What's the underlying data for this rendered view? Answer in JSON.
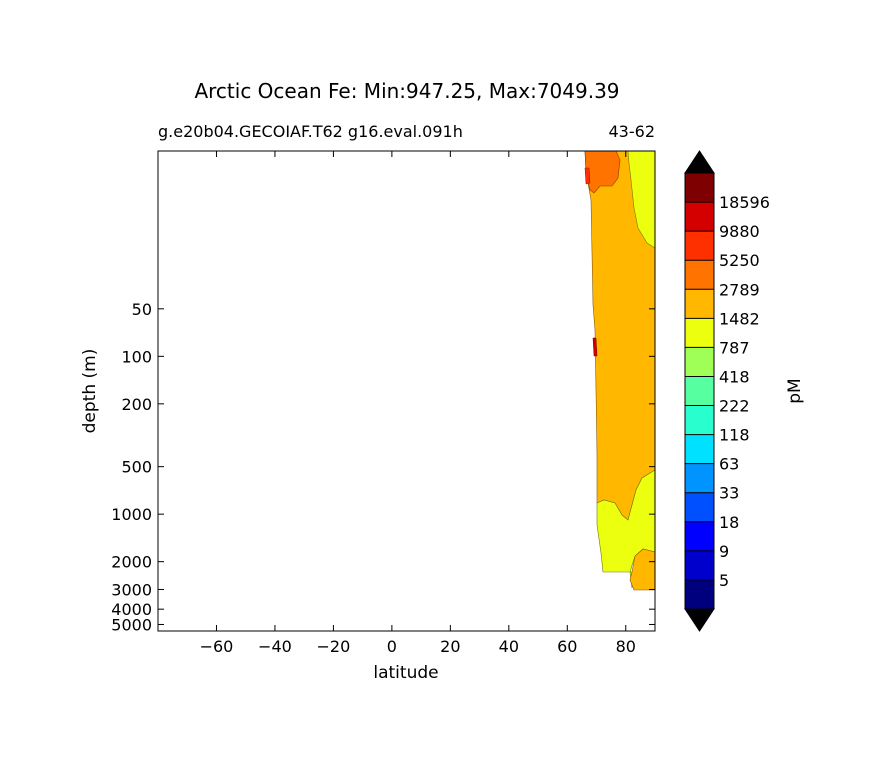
{
  "chart_data": {
    "type": "contour",
    "title": "Arctic Ocean Fe: Min:947.25, Max:7049.39",
    "subtitle_left": "g.e20b04.GECOIAF.T62 g16.eval.091h",
    "subtitle_right": "43-62",
    "xlabel": "latitude",
    "ylabel": "depth (m)",
    "xlim": [
      -80,
      90
    ],
    "x_ticks": [
      -60,
      -40,
      -20,
      0,
      20,
      40,
      60,
      80
    ],
    "x_tick_labels": [
      "−60",
      "−40",
      "−20",
      "0",
      "20",
      "40",
      "60",
      "80"
    ],
    "ylim_depth": [
      5,
      5500
    ],
    "y_ticks": [
      50,
      100,
      200,
      500,
      1000,
      2000,
      3000,
      4000,
      5000
    ],
    "y_tick_labels": [
      "50",
      "100",
      "200",
      "500",
      "1000",
      "2000",
      "3000",
      "4000",
      "5000"
    ],
    "colorbar": {
      "unit": "pM",
      "levels": [
        5,
        9,
        18,
        33,
        63,
        118,
        222,
        418,
        787,
        1482,
        2789,
        5250,
        9880,
        18596
      ],
      "level_labels": [
        "5",
        "9",
        "18",
        "33",
        "63",
        "118",
        "222",
        "418",
        "787",
        "1482",
        "2789",
        "5250",
        "9880",
        "18596"
      ],
      "colors": [
        "#00007f",
        "#0000cd",
        "#0000ff",
        "#0050ff",
        "#0094ff",
        "#00e0ff",
        "#29ffce",
        "#56ffa0",
        "#a0ff56",
        "#ecff0f",
        "#ffb700",
        "#ff7300",
        "#ff3000",
        "#d40000",
        "#7f0000"
      ],
      "under_color": "#000000",
      "over_color": "#000000"
    },
    "fill_colors": {
      "range_1482_2789": "#ecff0f",
      "range_2789_5250": "#ffb700",
      "range_5250_9880": "#ff7300",
      "range_9880_18596": "#ff3000"
    }
  }
}
